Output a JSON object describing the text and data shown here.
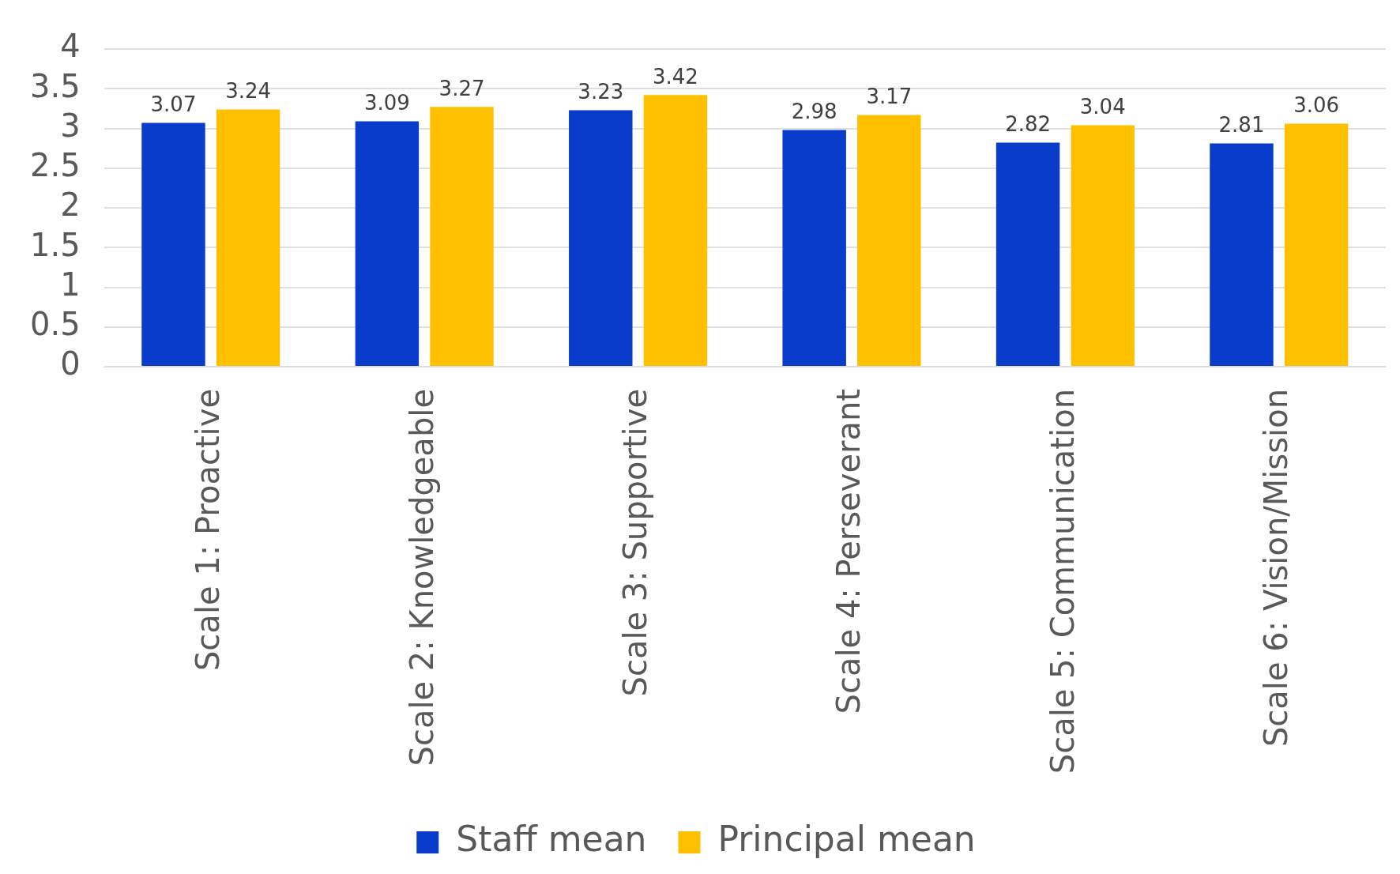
{
  "chart_data": {
    "type": "bar",
    "categories": [
      "Scale 1: Proactive",
      "Scale 2: Knowledgeable",
      "Scale 3: Supportive",
      "Scale 4: Perseverant",
      "Scale 5: Communication",
      "Scale 6: Vision/Mission"
    ],
    "series": [
      {
        "name": "Staff mean",
        "color": "#0a3ccc",
        "values": [
          3.07,
          3.09,
          3.23,
          2.98,
          2.82,
          2.81
        ]
      },
      {
        "name": "Principal mean",
        "color": "#ffc000",
        "values": [
          3.24,
          3.27,
          3.42,
          3.17,
          3.04,
          3.06
        ]
      }
    ],
    "ylim": [
      0,
      4
    ],
    "yticks": [
      0,
      0.5,
      1,
      1.5,
      2,
      2.5,
      3,
      3.5,
      4
    ],
    "grid": "y",
    "legend": "bottom",
    "data_labels": true
  }
}
